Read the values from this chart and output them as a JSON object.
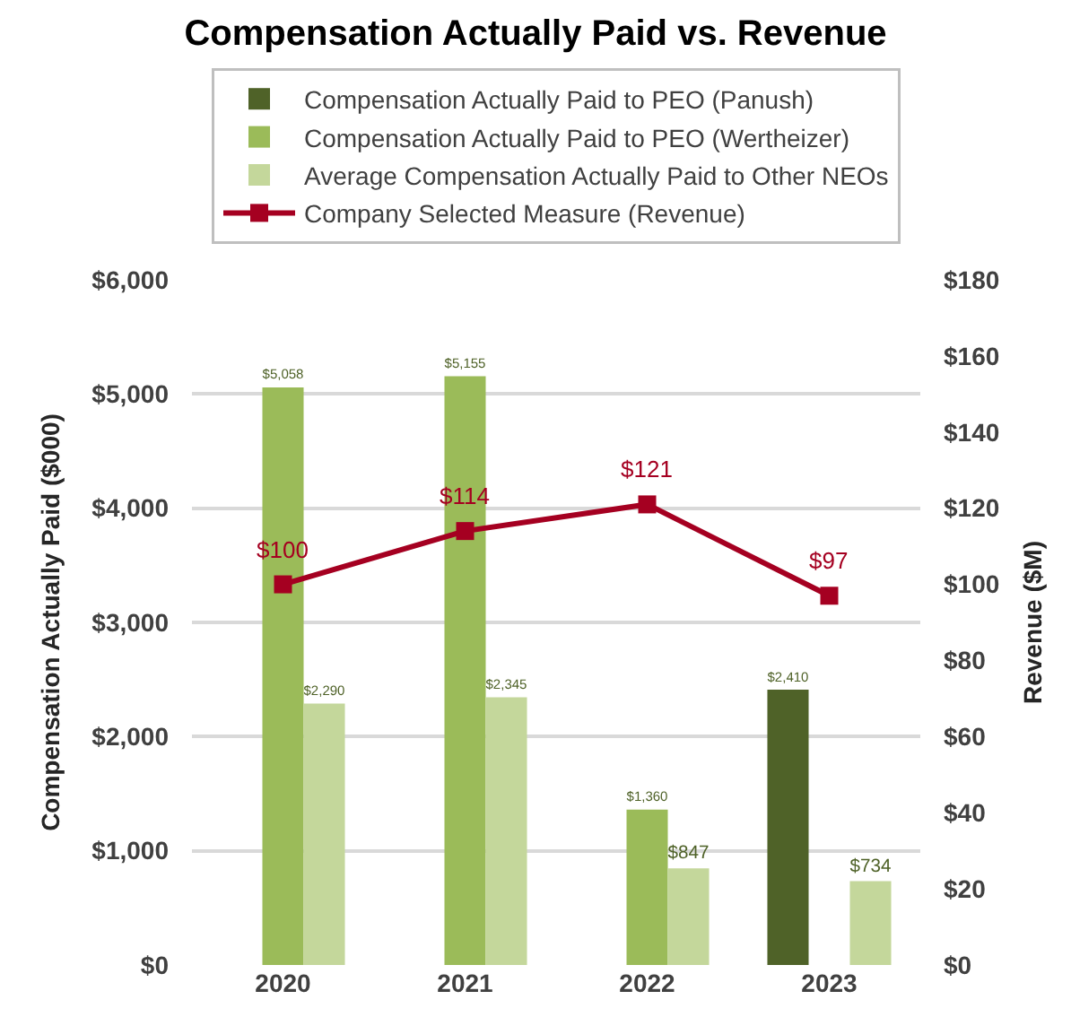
{
  "chart_data": {
    "type": "bar",
    "title": "Compensation Actually Paid vs. Revenue",
    "ylabel": "Compensation Actually Paid ($000)",
    "y2label": "Revenue ($M)",
    "categories": [
      "2020",
      "2021",
      "2022",
      "2023"
    ],
    "series": [
      {
        "name": "Compensation Actually Paid to PEO (Panush)",
        "color": "#4f6228",
        "values": [
          null,
          null,
          null,
          2410
        ],
        "value_labels": [
          null,
          null,
          null,
          "$2,410"
        ]
      },
      {
        "name": "Compensation Actually Paid to PEO (Wertheizer)",
        "color": "#9bbb59",
        "values": [
          5058,
          5155,
          1360,
          null
        ],
        "value_labels": [
          "$5,058",
          "$5,155",
          "$1,360",
          null
        ]
      },
      {
        "name": "Average Compensation Actually Paid to Other NEOs",
        "color": "#c4d79b",
        "values": [
          2290,
          2345,
          847,
          734
        ],
        "value_labels": [
          "$2,290",
          "$2,345",
          "$847",
          "$734"
        ]
      },
      {
        "name": "Company Selected Measure (Revenue)",
        "type": "line",
        "axis": "y2",
        "color": "#a50021",
        "marker": "square",
        "values": [
          100,
          114,
          121,
          97
        ],
        "value_labels": [
          "$100",
          "$114",
          "$121",
          "$97"
        ]
      }
    ],
    "ylim": [
      0,
      6000
    ],
    "yticks": [
      {
        "value": 0,
        "label": "$0"
      },
      {
        "value": 1000,
        "label": "$1,000"
      },
      {
        "value": 2000,
        "label": "$2,000"
      },
      {
        "value": 3000,
        "label": "$3,000"
      },
      {
        "value": 4000,
        "label": "$4,000"
      },
      {
        "value": 5000,
        "label": "$5,000"
      },
      {
        "value": 6000,
        "label": "$6,000"
      }
    ],
    "y2lim": [
      0,
      180
    ],
    "y2ticks": [
      {
        "value": 0,
        "label": "$0"
      },
      {
        "value": 20,
        "label": "$20"
      },
      {
        "value": 40,
        "label": "$40"
      },
      {
        "value": 60,
        "label": "$60"
      },
      {
        "value": 80,
        "label": "$80"
      },
      {
        "value": 100,
        "label": "$100"
      },
      {
        "value": 120,
        "label": "$120"
      },
      {
        "value": 140,
        "label": "$140"
      },
      {
        "value": 160,
        "label": "$160"
      },
      {
        "value": 180,
        "label": "$180"
      }
    ],
    "grid": "y",
    "legend": "top"
  }
}
